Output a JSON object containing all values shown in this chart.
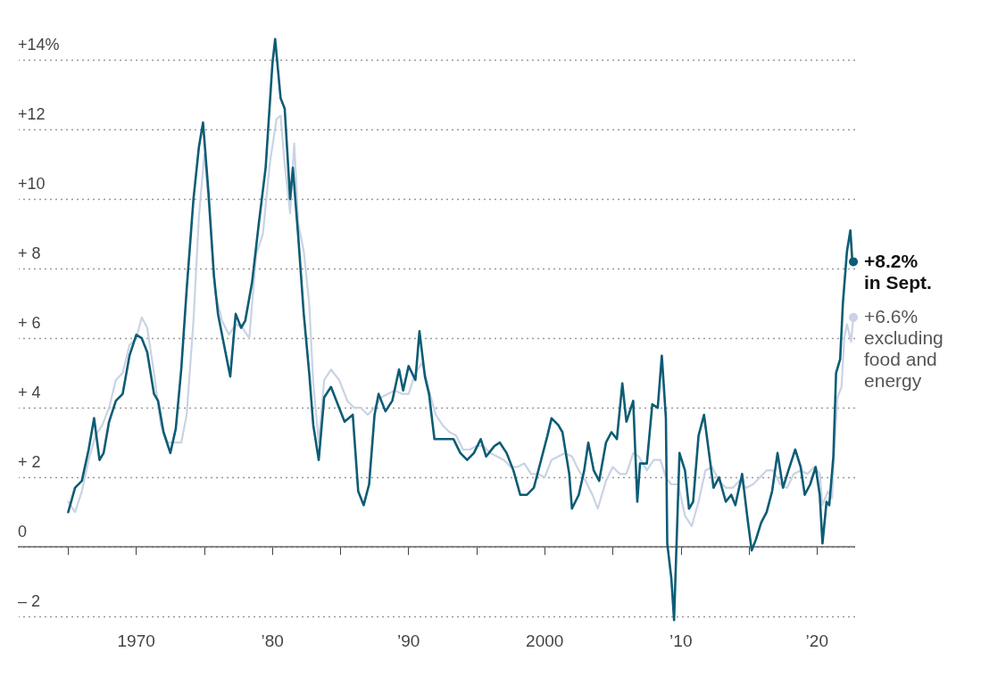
{
  "chart_data": {
    "type": "line",
    "xlim": [
      1961.3,
      2022.8
    ],
    "ylim": [
      -2.2,
      14.8
    ],
    "xticks": [
      {
        "value": 1965,
        "label": null
      },
      1970,
      {
        "value": 1975,
        "label": null
      },
      {
        "value": 1980,
        "label": "’80"
      },
      {
        "value": 1985,
        "label": null
      },
      {
        "value": 1990,
        "label": "’90"
      },
      {
        "value": 1995,
        "label": null
      },
      2000,
      {
        "value": 2005,
        "label": null
      },
      {
        "value": 2010,
        "label": "’10"
      },
      {
        "value": 2015,
        "label": null
      },
      {
        "value": 2020,
        "label": "’20"
      }
    ],
    "yticks": [
      {
        "value": -2,
        "label": "– 2"
      },
      0,
      {
        "value": 2,
        "label": "+ 2"
      },
      {
        "value": 4,
        "label": "+ 4"
      },
      {
        "value": 6,
        "label": "+ 6"
      },
      {
        "value": 8,
        "label": "+ 8"
      },
      {
        "value": 10,
        "label": "+10"
      },
      {
        "value": 12,
        "label": "+12"
      },
      {
        "value": 14,
        "label": "+14%"
      }
    ],
    "grid": "y",
    "ref_lines": [
      {
        "axis": "y",
        "value": 0,
        "color": "#666666"
      }
    ],
    "annotations": [
      {
        "text": "+8.2%\nin Sept.",
        "x": 2022.67,
        "y": 8.2
      },
      {
        "text": "+6.6%\nexcluding\nfood and\nenergy",
        "x": 2022.67,
        "y": 6.6
      }
    ],
    "series": [
      {
        "color": "#0d5c75",
        "x": [
          1965.0,
          1965.5,
          1966.0,
          1966.5,
          1966.9,
          1967.3,
          1967.6,
          1968.0,
          1968.5,
          1969.0,
          1969.5,
          1970.0,
          1970.4,
          1970.8,
          1971.3,
          1971.6,
          1972.0,
          1972.5,
          1972.9,
          1973.3,
          1973.7,
          1974.2,
          1974.6,
          1974.9,
          1975.3,
          1975.7,
          1976.0,
          1976.5,
          1976.9,
          1977.3,
          1977.7,
          1978.0,
          1978.5,
          1979.0,
          1979.5,
          1980.0,
          1980.2,
          1980.6,
          1980.9,
          1981.3,
          1981.5,
          1981.9,
          1982.3,
          1982.7,
          1983.0,
          1983.4,
          1983.8,
          1984.3,
          1984.9,
          1985.3,
          1985.9,
          1986.3,
          1986.7,
          1987.1,
          1987.5,
          1987.8,
          1988.3,
          1988.8,
          1989.3,
          1989.6,
          1990.0,
          1990.5,
          1990.8,
          1991.2,
          1991.5,
          1991.9,
          1992.3,
          1992.8,
          1993.3,
          1993.8,
          1994.3,
          1994.8,
          1995.3,
          1995.7,
          1996.3,
          1996.7,
          1997.2,
          1997.7,
          1998.2,
          1998.7,
          1999.2,
          1999.6,
          2000.2,
          2000.5,
          2001.0,
          2001.3,
          2001.8,
          2002.0,
          2002.5,
          2002.9,
          2003.2,
          2003.6,
          2004.0,
          2004.5,
          2004.9,
          2005.3,
          2005.7,
          2006.0,
          2006.5,
          2006.8,
          2007.0,
          2007.5,
          2007.9,
          2008.3,
          2008.6,
          2008.9,
          2009.0,
          2009.3,
          2009.5,
          2009.9,
          2010.3,
          2010.6,
          2010.9,
          2011.3,
          2011.7,
          2012.0,
          2012.4,
          2012.8,
          2013.3,
          2013.7,
          2014.0,
          2014.5,
          2014.9,
          2015.2,
          2015.5,
          2015.9,
          2016.3,
          2016.7,
          2017.1,
          2017.5,
          2017.9,
          2018.4,
          2018.8,
          2019.1,
          2019.5,
          2019.9,
          2020.2,
          2020.4,
          2020.7,
          2020.9,
          2021.2,
          2021.4,
          2021.7,
          2021.9,
          2022.2,
          2022.45,
          2022.58,
          2022.67
        ],
        "values": [
          1.0,
          1.7,
          1.9,
          2.8,
          3.7,
          2.5,
          2.7,
          3.6,
          4.2,
          4.4,
          5.5,
          6.1,
          6.0,
          5.6,
          4.4,
          4.2,
          3.3,
          2.7,
          3.4,
          5.1,
          7.4,
          10.0,
          11.5,
          12.2,
          10.2,
          7.8,
          6.7,
          5.7,
          4.9,
          6.7,
          6.3,
          6.5,
          7.6,
          9.3,
          10.9,
          13.9,
          14.6,
          12.9,
          12.6,
          10.0,
          10.9,
          8.9,
          6.7,
          5.0,
          3.5,
          2.5,
          4.3,
          4.6,
          4.0,
          3.6,
          3.8,
          1.6,
          1.2,
          1.8,
          3.8,
          4.4,
          3.9,
          4.2,
          5.1,
          4.5,
          5.2,
          4.8,
          6.2,
          4.9,
          4.4,
          3.1,
          3.1,
          3.1,
          3.1,
          2.7,
          2.5,
          2.7,
          3.1,
          2.6,
          2.9,
          3.0,
          2.7,
          2.2,
          1.5,
          1.5,
          1.7,
          2.3,
          3.2,
          3.7,
          3.5,
          3.3,
          2.1,
          1.1,
          1.5,
          2.2,
          3.0,
          2.2,
          1.9,
          3.0,
          3.3,
          3.1,
          4.7,
          3.6,
          4.2,
          1.3,
          2.4,
          2.4,
          4.1,
          4.0,
          5.5,
          3.7,
          0.1,
          -0.9,
          -2.1,
          2.7,
          2.2,
          1.1,
          1.3,
          3.2,
          3.8,
          2.9,
          1.7,
          2.0,
          1.3,
          1.5,
          1.2,
          2.1,
          0.8,
          -0.1,
          0.2,
          0.7,
          1.0,
          1.6,
          2.7,
          1.7,
          2.2,
          2.8,
          2.3,
          1.5,
          1.8,
          2.3,
          1.5,
          0.1,
          1.3,
          1.2,
          2.6,
          5.0,
          5.4,
          7.0,
          8.5,
          9.1,
          8.3,
          8.2
        ]
      },
      {
        "color": "#c9d3e3",
        "x": [
          1965.0,
          1965.5,
          1966.0,
          1966.5,
          1967.0,
          1967.5,
          1968.0,
          1968.5,
          1969.0,
          1969.5,
          1970.0,
          1970.4,
          1970.8,
          1971.3,
          1971.8,
          1972.3,
          1972.8,
          1973.3,
          1973.7,
          1974.2,
          1974.6,
          1975.0,
          1975.4,
          1975.8,
          1976.3,
          1976.8,
          1977.3,
          1977.8,
          1978.3,
          1978.8,
          1979.3,
          1979.8,
          1980.3,
          1980.6,
          1980.9,
          1981.3,
          1981.6,
          1981.9,
          1982.3,
          1982.7,
          1983.0,
          1983.4,
          1983.8,
          1984.3,
          1984.9,
          1985.5,
          1986.0,
          1986.5,
          1987.0,
          1987.5,
          1988.0,
          1988.5,
          1989.0,
          1989.5,
          1990.0,
          1990.5,
          1991.0,
          1991.5,
          1992.0,
          1992.5,
          1993.0,
          1993.5,
          1994.0,
          1994.5,
          1995.0,
          1995.5,
          1996.0,
          1996.5,
          1997.0,
          1997.5,
          1998.0,
          1998.5,
          1999.0,
          1999.5,
          2000.0,
          2000.5,
          2001.0,
          2001.5,
          2002.0,
          2002.5,
          2003.0,
          2003.5,
          2003.9,
          2004.5,
          2005.0,
          2005.5,
          2006.0,
          2006.5,
          2006.9,
          2007.5,
          2008.0,
          2008.5,
          2008.9,
          2009.3,
          2009.8,
          2010.3,
          2010.8,
          2011.3,
          2011.8,
          2012.3,
          2012.8,
          2013.3,
          2013.8,
          2014.3,
          2014.8,
          2015.3,
          2015.8,
          2016.3,
          2016.8,
          2017.3,
          2017.8,
          2018.3,
          2018.8,
          2019.3,
          2019.8,
          2020.2,
          2020.4,
          2020.8,
          2021.1,
          2021.3,
          2021.5,
          2021.8,
          2022.0,
          2022.2,
          2022.5,
          2022.67
        ],
        "values": [
          1.3,
          1.0,
          1.6,
          2.5,
          3.2,
          3.5,
          4.0,
          4.8,
          5.0,
          5.8,
          6.0,
          6.6,
          6.3,
          5.0,
          3.5,
          3.0,
          3.0,
          3.0,
          3.8,
          6.5,
          9.5,
          11.3,
          9.5,
          7.3,
          6.5,
          6.1,
          6.4,
          6.3,
          6.0,
          8.4,
          9.0,
          11.0,
          12.3,
          12.4,
          11.0,
          9.6,
          11.6,
          9.3,
          8.5,
          7.0,
          4.7,
          3.0,
          4.8,
          5.1,
          4.8,
          4.2,
          4.0,
          4.0,
          3.8,
          4.0,
          4.3,
          4.4,
          4.5,
          4.4,
          4.4,
          5.0,
          5.3,
          4.5,
          3.8,
          3.5,
          3.3,
          3.2,
          2.8,
          2.8,
          2.9,
          2.9,
          2.7,
          2.6,
          2.5,
          2.3,
          2.3,
          2.4,
          2.1,
          2.1,
          2.0,
          2.5,
          2.6,
          2.7,
          2.6,
          2.2,
          1.9,
          1.5,
          1.1,
          1.9,
          2.3,
          2.1,
          2.1,
          2.7,
          2.6,
          2.2,
          2.5,
          2.5,
          2.0,
          1.8,
          1.8,
          0.9,
          0.6,
          1.3,
          2.2,
          2.3,
          1.9,
          1.7,
          1.7,
          1.9,
          1.7,
          1.8,
          2.0,
          2.2,
          2.2,
          1.8,
          1.7,
          2.1,
          2.2,
          2.1,
          2.3,
          2.1,
          1.2,
          1.6,
          1.4,
          3.0,
          4.3,
          4.6,
          6.0,
          6.4,
          5.9,
          6.6
        ]
      }
    ]
  }
}
